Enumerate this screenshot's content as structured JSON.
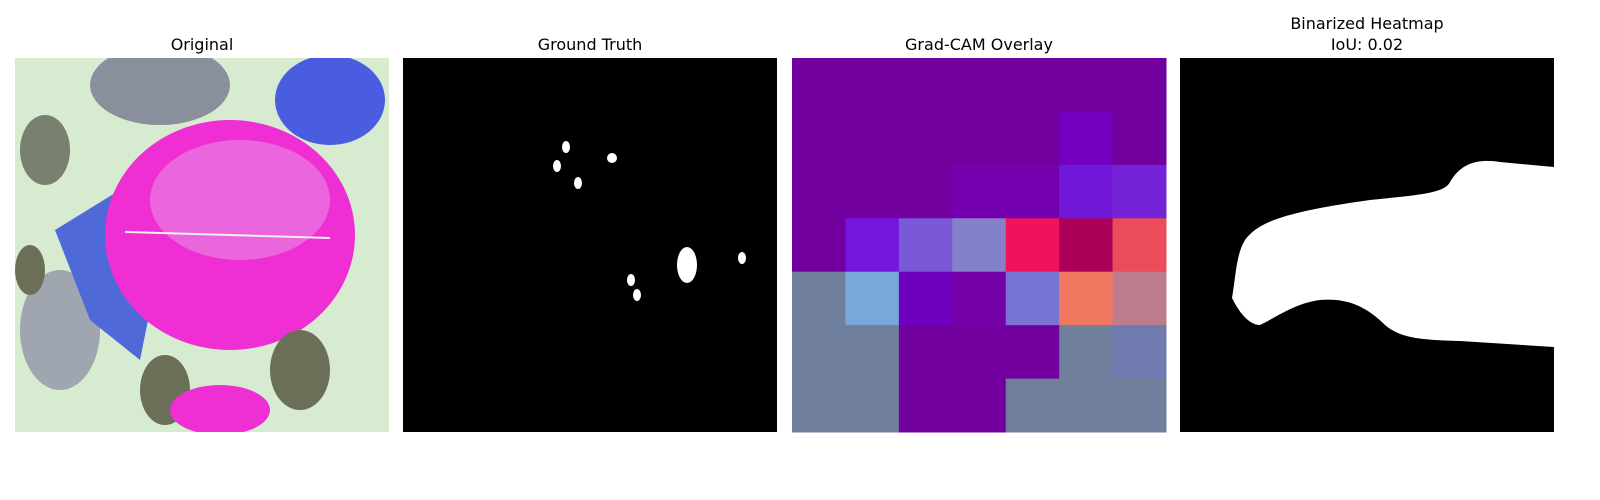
{
  "panels": [
    {
      "title": "Original"
    },
    {
      "title": "Ground Truth"
    },
    {
      "title": "Grad-CAM Overlay"
    },
    {
      "title": "Binarized Heatmap",
      "subtitle": "IoU: 0.02"
    }
  ]
}
